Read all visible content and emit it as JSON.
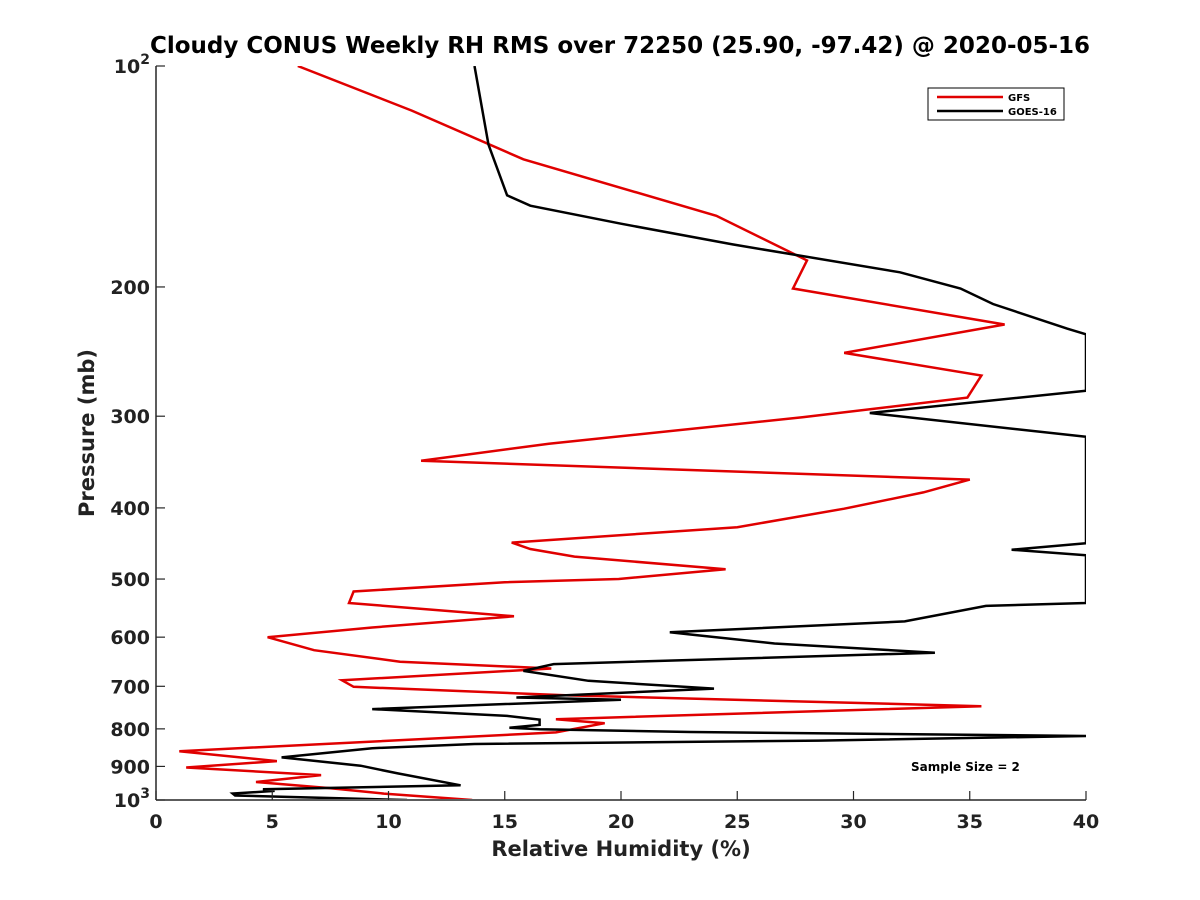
{
  "chart_data": {
    "type": "line",
    "title": "Cloudy CONUS Weekly RH RMS over 72250 (25.90, -97.42) @ 2020-05-16",
    "xlabel": "Relative Humidity (%)",
    "ylabel": "Pressure (mb)",
    "xlim": [
      0,
      40
    ],
    "ylim": [
      100,
      1000
    ],
    "y_scale": "log",
    "y_reversed": true,
    "grid": false,
    "legend_position": "top-right",
    "x_ticks": [
      0,
      5,
      10,
      15,
      20,
      25,
      30,
      35,
      40
    ],
    "y_ticks": [
      {
        "value": 100,
        "base": "10",
        "exp": "2"
      },
      {
        "value": 200,
        "label": "200"
      },
      {
        "value": 300,
        "label": "300"
      },
      {
        "value": 400,
        "label": "400"
      },
      {
        "value": 500,
        "label": "500"
      },
      {
        "value": 600,
        "label": "600"
      },
      {
        "value": 700,
        "label": "700"
      },
      {
        "value": 800,
        "label": "800"
      },
      {
        "value": 900,
        "label": "900"
      },
      {
        "value": 1000,
        "base": "10",
        "exp": "3"
      }
    ],
    "annotation": "Sample Size = 2",
    "series": [
      {
        "name": "GFS",
        "color": "#e00000",
        "points": [
          [
            6.1,
            100
          ],
          [
            11.0,
            115
          ],
          [
            15.8,
            134
          ],
          [
            24.1,
            160
          ],
          [
            28.0,
            184
          ],
          [
            27.4,
            201
          ],
          [
            36.5,
            225
          ],
          [
            29.6,
            246
          ],
          [
            35.5,
            264
          ],
          [
            34.9,
            283
          ],
          [
            27.8,
            301
          ],
          [
            16.9,
            327
          ],
          [
            11.4,
            345
          ],
          [
            35.0,
            366
          ],
          [
            33.0,
            381
          ],
          [
            29.6,
            401
          ],
          [
            25.0,
            425
          ],
          [
            15.3,
            446
          ],
          [
            16.1,
            455
          ],
          [
            18.0,
            466
          ],
          [
            24.5,
            485
          ],
          [
            19.9,
            500
          ],
          [
            15.0,
            505
          ],
          [
            8.5,
            520
          ],
          [
            8.3,
            539
          ],
          [
            15.4,
            562
          ],
          [
            9.3,
            582
          ],
          [
            4.8,
            600
          ],
          [
            6.8,
            625
          ],
          [
            10.5,
            648
          ],
          [
            17.0,
            662
          ],
          [
            8.0,
            687
          ],
          [
            8.5,
            701
          ],
          [
            17.6,
            720
          ],
          [
            35.5,
            745
          ],
          [
            17.2,
            776
          ],
          [
            19.3,
            786
          ],
          [
            17.2,
            809
          ],
          [
            1.0,
            858
          ],
          [
            5.2,
            885
          ],
          [
            1.3,
            903
          ],
          [
            7.1,
            925
          ],
          [
            4.3,
            945
          ],
          [
            7.4,
            963
          ],
          [
            9.8,
            980
          ],
          [
            13.6,
            1000
          ]
        ]
      },
      {
        "name": "GOES-16",
        "color": "#000000",
        "points": [
          [
            13.7,
            100
          ],
          [
            14.3,
            128
          ],
          [
            15.1,
            150
          ],
          [
            16.1,
            155
          ],
          [
            20.0,
            164
          ],
          [
            24.8,
            175
          ],
          [
            32.0,
            191
          ],
          [
            34.6,
            201
          ],
          [
            36.0,
            211
          ],
          [
            39.2,
            228
          ],
          [
            40.0,
            232
          ],
          [
            40.0,
            277
          ],
          [
            30.7,
            297
          ],
          [
            40.0,
            320
          ],
          [
            40.0,
            447
          ],
          [
            36.8,
            456
          ],
          [
            40.0,
            464
          ],
          [
            40.0,
            539
          ],
          [
            35.7,
            544
          ],
          [
            32.2,
            571
          ],
          [
            22.1,
            591
          ],
          [
            26.6,
            612
          ],
          [
            33.5,
            630
          ],
          [
            17.1,
            653
          ],
          [
            15.8,
            667
          ],
          [
            18.6,
            688
          ],
          [
            24.0,
            705
          ],
          [
            15.5,
            725
          ],
          [
            20.0,
            730
          ],
          [
            9.3,
            752
          ],
          [
            15.1,
            768
          ],
          [
            15.7,
            772
          ],
          [
            16.5,
            777
          ],
          [
            16.5,
            790
          ],
          [
            15.2,
            797
          ],
          [
            16.5,
            801
          ],
          [
            23.0,
            808
          ],
          [
            40.0,
            818
          ],
          [
            28.5,
            830
          ],
          [
            13.7,
            839
          ],
          [
            9.3,
            850
          ],
          [
            5.4,
            875
          ],
          [
            8.8,
            898
          ],
          [
            10.4,
            920
          ],
          [
            13.1,
            955
          ],
          [
            4.6,
            967
          ],
          [
            5.1,
            972
          ],
          [
            3.3,
            980
          ],
          [
            3.4,
            986
          ],
          [
            5.4,
            990
          ],
          [
            10.8,
            1000
          ]
        ]
      }
    ]
  }
}
